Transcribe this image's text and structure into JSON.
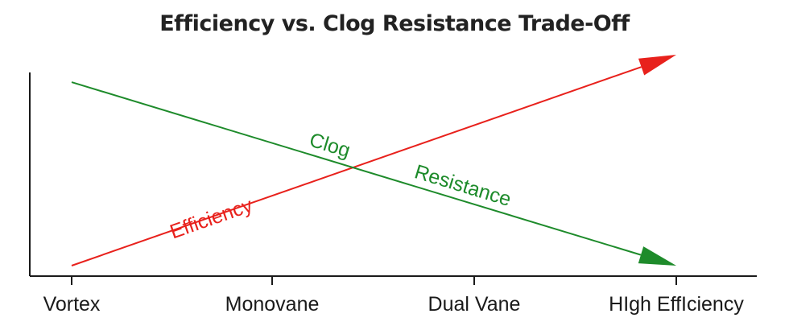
{
  "chart_data": {
    "type": "line",
    "title": "Efficiency vs. Clog Resistance Trade-Off",
    "xlabel": "",
    "ylabel": "",
    "categories": [
      "Vortex",
      "Monovane",
      "Dual Vane",
      "HIgh EffIciency"
    ],
    "series": [
      {
        "name": "Efficiency",
        "color": "#e8211c",
        "start": 0.0,
        "end": 1.0,
        "arrow": "end"
      },
      {
        "name": "Clog Resistance",
        "color": "#1e8b2b",
        "start": 0.87,
        "end": 0.0,
        "arrow": "end"
      }
    ],
    "series_label_parts": {
      "Clog Resistance": [
        "Clog",
        "Resistance"
      ]
    },
    "ylim": [
      0,
      1
    ],
    "grid": false,
    "legend": "none",
    "colors": {
      "axis": "#1a1a1a",
      "text": "#1a1a1a",
      "title": "#222222"
    }
  }
}
